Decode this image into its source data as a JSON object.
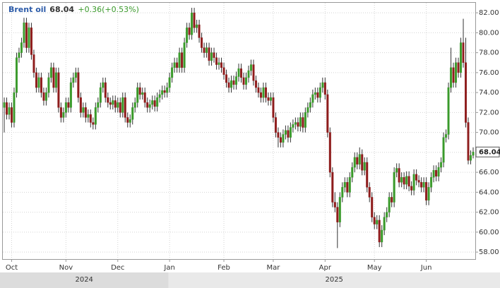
{
  "chart_data": {
    "type": "candlestick",
    "title": "Brent oil",
    "last": 68.04,
    "change": "+0.36(+0.53%)",
    "up_color": "#3a9a2b",
    "down_color": "#8e1c1c",
    "ylim": [
      57.3,
      83.0
    ],
    "yticks": [
      {
        "value": 58,
        "label": "58.00"
      },
      {
        "value": 60,
        "label": "60.00"
      },
      {
        "value": 62,
        "label": "62.00"
      },
      {
        "value": 64,
        "label": "64.00"
      },
      {
        "value": 66,
        "label": "66.00"
      },
      {
        "value": 68,
        "label": "68.00"
      },
      {
        "value": 70,
        "label": "70.00"
      },
      {
        "value": 72,
        "label": "72.00"
      },
      {
        "value": 74,
        "label": "74.00"
      },
      {
        "value": 76,
        "label": "76.00"
      },
      {
        "value": 78,
        "label": "78.00"
      },
      {
        "value": 80,
        "label": "80.00"
      },
      {
        "value": 82,
        "label": "82.00"
      }
    ],
    "grid": true,
    "years": [
      "2024",
      "2025"
    ],
    "categories": [
      null,
      null,
      null,
      "Oct",
      null,
      null,
      null,
      null,
      null,
      null,
      null,
      null,
      null,
      null,
      null,
      null,
      null,
      null,
      null,
      null,
      null,
      null,
      null,
      null,
      null,
      "Nov",
      null,
      null,
      null,
      null,
      null,
      null,
      null,
      null,
      null,
      null,
      null,
      null,
      null,
      null,
      null,
      null,
      null,
      null,
      null,
      null,
      "Dec",
      null,
      null,
      null,
      null,
      null,
      null,
      null,
      null,
      null,
      null,
      null,
      null,
      null,
      null,
      null,
      null,
      null,
      null,
      null,
      null,
      "Jan",
      null,
      null,
      null,
      null,
      null,
      null,
      null,
      null,
      null,
      null,
      null,
      null,
      null,
      null,
      null,
      null,
      null,
      null,
      null,
      null,
      null,
      "Feb",
      null,
      null,
      null,
      null,
      null,
      null,
      null,
      null,
      null,
      null,
      null,
      null,
      null,
      null,
      null,
      null,
      null,
      null,
      null,
      "Mar",
      null,
      null,
      null,
      null,
      null,
      null,
      null,
      null,
      null,
      null,
      null,
      null,
      null,
      null,
      null,
      null,
      null,
      null,
      null,
      null,
      "Apr",
      null,
      null,
      null,
      null,
      null,
      null,
      null,
      null,
      null,
      null,
      null,
      null,
      null,
      null,
      null,
      null,
      null,
      null,
      null,
      "May",
      null,
      null,
      null,
      null,
      null,
      null,
      null,
      null,
      null,
      null,
      null,
      null,
      null,
      null,
      null,
      null,
      null,
      null,
      null,
      null,
      "Jun",
      null,
      null,
      null,
      null,
      null,
      null,
      null,
      null,
      null,
      null,
      null,
      null,
      null,
      null,
      null,
      null,
      null,
      null,
      null
    ],
    "open": [
      72.5,
      73.0,
      71.8,
      72.5,
      71.0,
      74.0,
      77.5,
      78.0,
      79.0,
      81.0,
      78.5,
      80.5,
      77.8,
      76.0,
      74.5,
      75.5,
      74.0,
      73.2,
      74.0,
      75.5,
      76.5,
      74.5,
      76.0,
      72.5,
      71.5,
      72.0,
      73.0,
      72.5,
      75.0,
      75.5,
      76.0,
      73.5,
      72.0,
      72.5,
      71.5,
      71.8,
      71.0,
      70.8,
      72.5,
      73.0,
      74.5,
      75.0,
      73.5,
      73.0,
      72.8,
      73.2,
      72.5,
      73.0,
      72.0,
      73.5,
      71.5,
      71.0,
      71.3,
      72.5,
      73.0,
      74.5,
      73.8,
      74.0,
      73.0,
      72.5,
      72.8,
      73.2,
      72.6,
      73.5,
      73.8,
      74.2,
      74.0,
      74.5,
      75.5,
      76.5,
      77.0,
      76.5,
      78.0,
      76.5,
      79.0,
      80.5,
      79.8,
      82.0,
      80.5,
      80.8,
      79.5,
      78.5,
      78.0,
      78.5,
      77.2,
      78.0,
      77.5,
      76.8,
      77.0,
      76.5,
      75.8,
      75.0,
      74.5,
      75.2,
      74.8,
      75.6,
      76.4,
      75.5,
      74.8,
      75.5,
      76.2,
      76.8,
      75.2,
      74.5,
      74.0,
      73.5,
      74.5,
      73.5,
      73.2,
      73.5,
      71.5,
      70.0,
      69.5,
      69.0,
      69.8,
      70.2,
      69.5,
      70.5,
      70.8,
      71.0,
      70.6,
      71.5,
      70.5,
      72.0,
      72.5,
      73.0,
      73.8,
      74.0,
      73.5,
      74.5,
      75.0,
      73.8,
      70.0,
      66.0,
      63.0,
      62.5,
      61.0,
      63.5,
      64.5,
      65.0,
      64.0,
      65.5,
      66.5,
      67.5,
      66.8,
      67.8,
      66.2,
      67.0,
      64.5,
      63.5,
      61.5,
      60.8,
      61.2,
      59.0,
      60.2,
      61.5,
      62.0,
      63.5,
      63.0,
      66.0,
      66.4,
      65.0,
      65.5,
      64.8,
      65.6,
      64.6,
      64.2,
      65.8,
      65.2,
      65.0,
      64.5,
      65.0,
      63.2,
      64.5,
      65.5,
      66.2,
      65.6,
      66.5,
      67.0,
      69.5,
      69.8,
      74.5,
      76.5,
      75.0,
      77.0,
      76.0,
      79.0,
      77.0,
      71.0,
      67.2,
      67.7
    ],
    "high": [
      73.5,
      73.5,
      73.0,
      73.0,
      74.5,
      78.0,
      78.5,
      79.5,
      81.5,
      81.5,
      81.0,
      81.0,
      78.3,
      76.5,
      76.0,
      76.0,
      74.5,
      74.5,
      76.0,
      77.0,
      77.0,
      76.5,
      76.5,
      73.0,
      72.5,
      73.5,
      73.5,
      75.5,
      76.0,
      76.5,
      76.5,
      74.0,
      73.0,
      73.0,
      72.3,
      72.3,
      71.5,
      73.0,
      73.5,
      75.0,
      75.5,
      75.5,
      74.0,
      73.5,
      73.7,
      73.7,
      73.5,
      73.5,
      74.0,
      74.0,
      72.0,
      71.8,
      73.0,
      73.5,
      75.0,
      75.0,
      74.5,
      74.5,
      73.5,
      73.3,
      73.7,
      73.7,
      74.0,
      74.3,
      74.7,
      74.7,
      75.0,
      76.0,
      77.0,
      77.5,
      77.5,
      78.5,
      78.5,
      79.5,
      81.0,
      81.0,
      82.5,
      82.5,
      81.3,
      81.3,
      80.0,
      79.0,
      79.0,
      79.0,
      78.5,
      78.5,
      78.0,
      77.5,
      77.5,
      77.0,
      76.3,
      75.5,
      75.7,
      75.7,
      76.1,
      76.9,
      76.9,
      76.0,
      76.0,
      76.7,
      77.3,
      77.3,
      75.7,
      75.0,
      74.5,
      75.0,
      75.0,
      74.0,
      74.0,
      74.0,
      72.0,
      70.5,
      70.0,
      70.3,
      70.7,
      70.7,
      71.0,
      71.3,
      71.5,
      71.5,
      72.0,
      72.0,
      72.5,
      73.0,
      73.5,
      74.3,
      74.5,
      74.5,
      75.0,
      75.5,
      75.5,
      74.3,
      70.5,
      66.5,
      64.0,
      63.0,
      64.0,
      65.0,
      65.5,
      65.5,
      66.0,
      67.0,
      68.0,
      68.0,
      68.5,
      68.3,
      67.5,
      67.5,
      65.0,
      64.0,
      62.0,
      61.7,
      61.7,
      60.7,
      62.0,
      62.5,
      64.0,
      64.0,
      66.5,
      66.9,
      66.9,
      66.0,
      66.0,
      66.1,
      66.1,
      65.1,
      66.3,
      66.3,
      65.7,
      65.5,
      65.5,
      65.5,
      65.0,
      66.0,
      66.7,
      66.7,
      67.0,
      67.5,
      70.0,
      70.3,
      75.0,
      78.5,
      77.0,
      77.5,
      77.5,
      79.5,
      81.4,
      79.5,
      71.5,
      68.2,
      68.5
    ],
    "low": [
      70.0,
      71.3,
      71.3,
      70.5,
      70.5,
      73.5,
      77.0,
      77.5,
      78.5,
      78.0,
      78.0,
      77.3,
      75.5,
      74.0,
      74.0,
      73.5,
      72.7,
      72.7,
      73.5,
      75.0,
      74.0,
      74.0,
      72.0,
      71.0,
      71.0,
      71.5,
      72.0,
      72.0,
      74.5,
      75.0,
      73.0,
      71.5,
      71.5,
      71.0,
      71.0,
      70.5,
      70.3,
      70.3,
      72.0,
      72.5,
      74.0,
      73.0,
      72.5,
      72.3,
      72.3,
      72.0,
      72.0,
      71.5,
      71.5,
      71.0,
      70.5,
      70.5,
      70.8,
      72.0,
      72.5,
      73.3,
      73.3,
      72.5,
      72.0,
      72.0,
      72.3,
      72.1,
      72.1,
      73.0,
      73.3,
      73.5,
      73.5,
      74.0,
      75.0,
      76.0,
      76.0,
      76.0,
      76.0,
      76.0,
      78.5,
      79.3,
      79.3,
      80.0,
      80.0,
      79.0,
      78.0,
      77.5,
      77.5,
      76.7,
      76.7,
      77.0,
      76.3,
      76.3,
      76.0,
      75.3,
      74.5,
      74.0,
      74.0,
      74.3,
      74.3,
      75.1,
      75.0,
      74.3,
      74.3,
      75.0,
      75.7,
      74.7,
      74.0,
      73.5,
      73.0,
      73.0,
      73.0,
      72.7,
      72.7,
      71.0,
      69.5,
      68.5,
      68.5,
      68.5,
      69.3,
      69.0,
      69.0,
      70.0,
      70.3,
      70.1,
      70.1,
      70.0,
      70.0,
      71.5,
      72.0,
      72.5,
      73.3,
      73.0,
      73.0,
      74.0,
      73.3,
      69.5,
      65.5,
      62.5,
      62.0,
      58.4,
      60.5,
      63.0,
      64.0,
      63.5,
      63.5,
      65.0,
      66.0,
      66.3,
      66.3,
      65.7,
      65.7,
      64.0,
      63.0,
      61.0,
      60.3,
      60.3,
      58.5,
      58.5,
      59.7,
      61.0,
      61.5,
      62.5,
      62.5,
      65.5,
      64.5,
      64.5,
      64.3,
      64.3,
      64.1,
      63.7,
      63.7,
      64.7,
      64.5,
      64.0,
      64.0,
      62.7,
      62.7,
      64.0,
      65.0,
      65.1,
      65.1,
      66.0,
      66.5,
      69.0,
      69.3,
      74.0,
      74.5,
      74.5,
      75.5,
      75.5,
      76.5,
      70.5,
      66.8,
      66.8,
      67.4
    ],
    "close": [
      73.0,
      71.8,
      72.5,
      71.0,
      74.0,
      77.5,
      78.0,
      79.0,
      81.0,
      78.5,
      80.5,
      77.8,
      76.0,
      74.5,
      75.5,
      74.0,
      73.2,
      74.0,
      75.5,
      76.5,
      74.5,
      76.0,
      72.5,
      71.5,
      72.0,
      73.0,
      72.5,
      75.0,
      75.5,
      76.0,
      73.5,
      72.0,
      72.5,
      71.5,
      71.8,
      71.0,
      70.8,
      72.5,
      73.0,
      74.5,
      75.0,
      73.5,
      73.0,
      72.8,
      73.2,
      72.5,
      73.0,
      72.0,
      73.5,
      71.5,
      71.0,
      71.3,
      72.5,
      73.0,
      74.5,
      73.8,
      74.0,
      73.0,
      72.5,
      72.8,
      73.2,
      72.6,
      73.5,
      73.8,
      74.2,
      74.0,
      74.5,
      75.5,
      76.5,
      77.0,
      76.5,
      78.0,
      76.5,
      79.0,
      80.5,
      79.8,
      82.0,
      80.5,
      80.8,
      79.5,
      78.5,
      78.0,
      78.5,
      77.2,
      78.0,
      77.5,
      76.8,
      77.0,
      76.5,
      75.8,
      75.0,
      74.5,
      75.2,
      74.8,
      75.6,
      76.4,
      75.5,
      74.8,
      75.5,
      76.2,
      76.8,
      75.2,
      74.5,
      74.0,
      73.5,
      74.5,
      73.5,
      73.2,
      73.5,
      71.5,
      70.0,
      69.5,
      69.0,
      69.8,
      70.2,
      69.5,
      70.5,
      70.8,
      71.0,
      70.6,
      71.5,
      70.5,
      72.0,
      72.5,
      73.0,
      73.8,
      74.0,
      73.5,
      74.5,
      75.0,
      73.8,
      70.0,
      66.0,
      63.0,
      62.5,
      61.0,
      63.5,
      64.5,
      65.0,
      64.0,
      65.5,
      66.5,
      67.5,
      66.8,
      67.8,
      66.2,
      67.0,
      64.5,
      63.5,
      61.5,
      60.8,
      61.2,
      59.0,
      60.2,
      61.5,
      62.0,
      63.5,
      63.0,
      66.0,
      66.4,
      65.0,
      65.5,
      64.8,
      65.6,
      64.6,
      64.2,
      65.8,
      65.2,
      65.0,
      64.5,
      65.0,
      63.2,
      64.5,
      65.5,
      66.2,
      65.6,
      66.5,
      67.0,
      69.5,
      69.8,
      74.5,
      76.5,
      75.0,
      77.0,
      76.0,
      79.0,
      77.0,
      71.0,
      67.2,
      67.7,
      68.04
    ]
  }
}
